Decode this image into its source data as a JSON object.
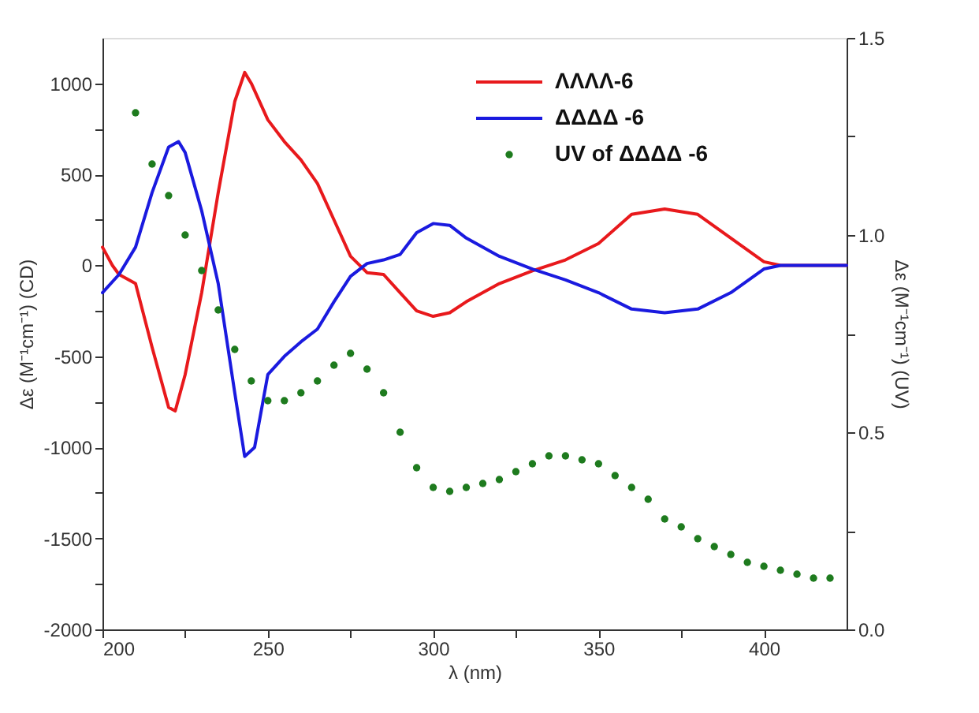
{
  "chart_data": {
    "type": "line",
    "xlabel": "λ (nm)",
    "ylabel": "Δε (M⁻¹cm⁻¹) (CD)",
    "y2label": "Δε (M⁻¹cm⁻¹) (UV)",
    "xlim": [
      200,
      425
    ],
    "xticks": [
      200,
      {
        "value": 225,
        "label": null
      },
      250,
      {
        "value": 275,
        "label": null
      },
      300,
      {
        "value": 325,
        "label": null
      },
      350,
      {
        "value": 375,
        "label": null
      },
      400
    ],
    "ylim": [
      -2000,
      1250
    ],
    "yticks": [
      -2000,
      {
        "value": -1750,
        "label": null
      },
      -1500,
      {
        "value": -1250,
        "label": null
      },
      -1000,
      {
        "value": -750,
        "label": null
      },
      -500,
      {
        "value": -250,
        "label": null
      },
      0,
      {
        "value": 250,
        "label": null
      },
      500,
      {
        "value": 750,
        "label": null
      },
      1000
    ],
    "y2lim": [
      0,
      1.5
    ],
    "y2ticks": [
      {
        "value": 0,
        "label": "0.0"
      },
      {
        "value": 0.25,
        "label": null
      },
      {
        "value": 0.5,
        "label": "0.5"
      },
      {
        "value": 0.75,
        "label": null
      },
      {
        "value": 1,
        "label": "1.0"
      },
      {
        "value": 1.25,
        "label": null
      },
      {
        "value": 1.5,
        "label": "1.5"
      }
    ],
    "grid": false,
    "legend": "top right",
    "series": [
      {
        "name": "ΛΛΛΛ-6",
        "color": "#e8191c",
        "x": [
          200,
          203,
          205,
          210,
          215,
          220,
          222,
          225,
          230,
          235,
          240,
          243,
          245,
          250,
          255,
          260,
          265,
          270,
          275,
          280,
          285,
          290,
          295,
          300,
          305,
          310,
          320,
          330,
          340,
          350,
          360,
          370,
          380,
          390,
          400,
          405,
          425
        ],
        "values": [
          100,
          0,
          -50,
          -100,
          -450,
          -780,
          -800,
          -600,
          -150,
          400,
          900,
          1060,
          1000,
          800,
          680,
          580,
          450,
          250,
          50,
          -40,
          -50,
          -150,
          -250,
          -280,
          -260,
          -200,
          -100,
          -30,
          30,
          120,
          280,
          310,
          280,
          150,
          20,
          0,
          0
        ]
      },
      {
        "name": "ΔΔΔΔ -6",
        "color": "#1a1adf",
        "x": [
          200,
          205,
          210,
          215,
          220,
          223,
          225,
          230,
          235,
          240,
          243,
          246,
          250,
          255,
          260,
          265,
          270,
          275,
          280,
          285,
          290,
          295,
          300,
          305,
          310,
          320,
          330,
          340,
          350,
          360,
          370,
          380,
          390,
          400,
          405,
          425
        ],
        "values": [
          -150,
          -50,
          100,
          400,
          650,
          680,
          620,
          300,
          -100,
          -700,
          -1050,
          -1000,
          -600,
          -500,
          -420,
          -350,
          -200,
          -60,
          10,
          30,
          60,
          180,
          230,
          220,
          150,
          50,
          -20,
          -80,
          -150,
          -240,
          -260,
          -240,
          -150,
          -20,
          0,
          0
        ]
      },
      {
        "name": "UV of ΔΔΔΔ -6",
        "color": "#1e7b1e",
        "type": "scatter",
        "axis": "y2",
        "x": [
          210,
          215,
          220,
          225,
          230,
          235,
          240,
          245,
          250,
          255,
          260,
          265,
          270,
          275,
          280,
          285,
          290,
          295,
          300,
          305,
          310,
          315,
          320,
          325,
          330,
          335,
          340,
          345,
          350,
          355,
          360,
          365,
          370,
          375,
          380,
          385,
          390,
          395,
          400,
          405,
          410,
          415,
          420
        ],
        "values": [
          1.31,
          1.18,
          1.1,
          1.0,
          0.91,
          0.81,
          0.71,
          0.63,
          0.58,
          0.58,
          0.6,
          0.63,
          0.67,
          0.7,
          0.66,
          0.6,
          0.5,
          0.41,
          0.36,
          0.35,
          0.36,
          0.37,
          0.38,
          0.4,
          0.42,
          0.44,
          0.44,
          0.43,
          0.42,
          0.39,
          0.36,
          0.33,
          0.28,
          0.26,
          0.23,
          0.21,
          0.19,
          0.17,
          0.16,
          0.15,
          0.14,
          0.13,
          0.13
        ]
      }
    ]
  }
}
